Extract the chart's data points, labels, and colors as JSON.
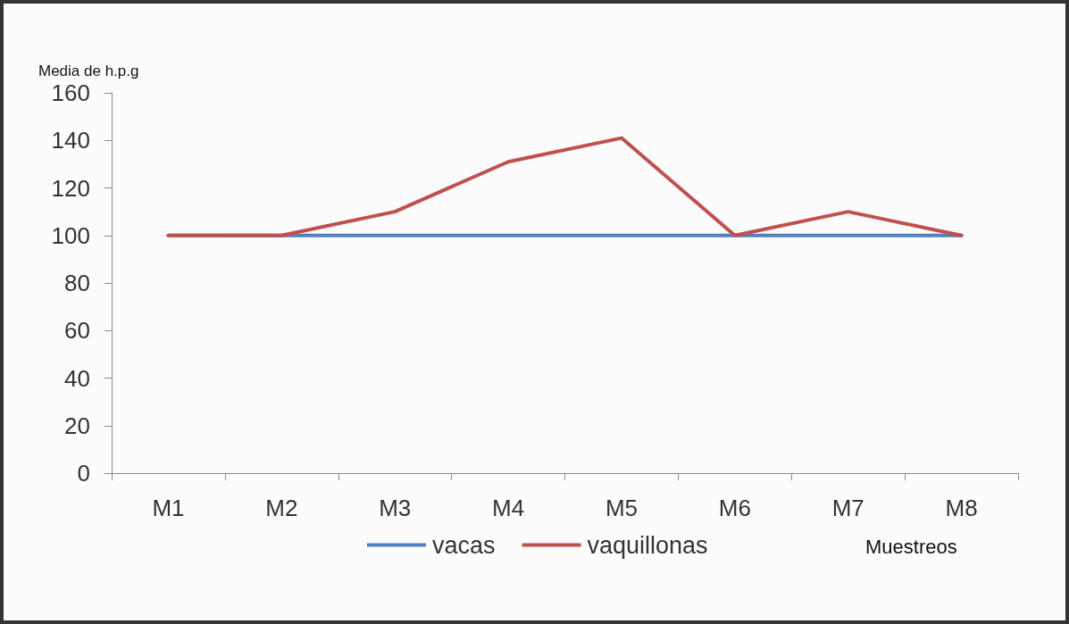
{
  "chart_data": {
    "type": "line",
    "xlabel": "Muestreos",
    "ylabel": "Media de h.p.g",
    "categories": [
      "M1",
      "M2",
      "M3",
      "M4",
      "M5",
      "M6",
      "M7",
      "M8"
    ],
    "series": [
      {
        "name": "vacas",
        "color": "#4f81bd",
        "values": [
          100,
          100,
          100,
          100,
          100,
          100,
          100,
          100
        ]
      },
      {
        "name": "vaquillonas",
        "color": "#c0504d",
        "values": [
          100,
          100,
          110,
          131,
          141,
          100,
          110,
          100
        ]
      }
    ],
    "ylim": [
      0,
      160
    ],
    "yticks": [
      0,
      20,
      40,
      60,
      80,
      100,
      120,
      140,
      160
    ],
    "grid": false,
    "legend": "bottom",
    "marker": "none",
    "line_style": "solid"
  }
}
